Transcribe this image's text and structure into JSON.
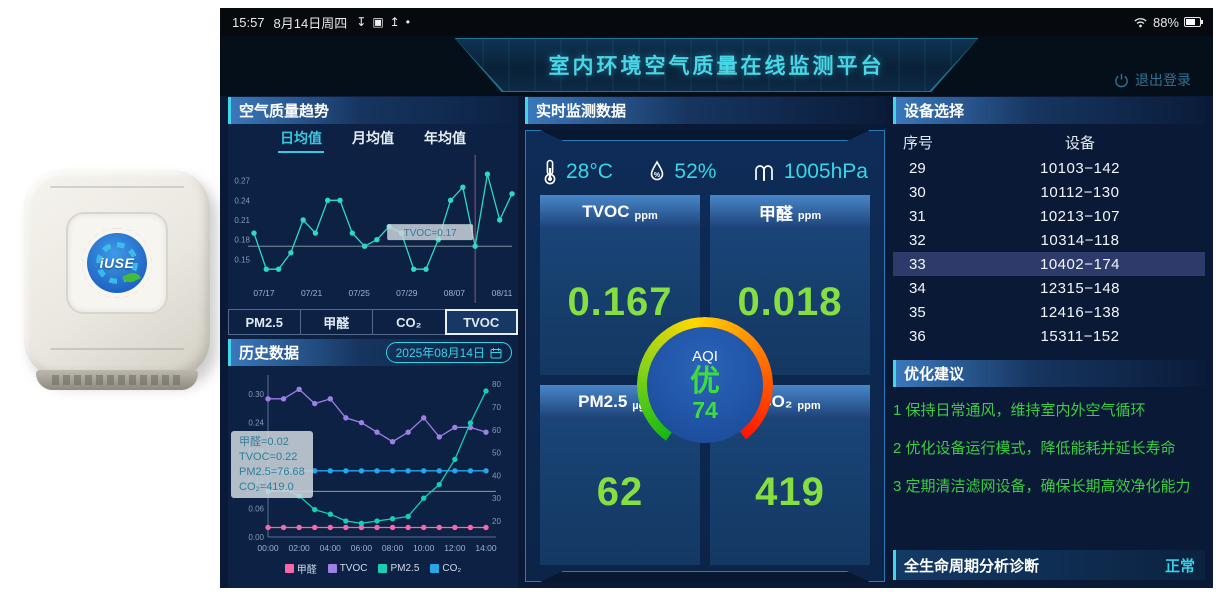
{
  "colors": {
    "accent_cyan": "#3fd8ea",
    "value_green": "#86df41",
    "aqi_green": "#3edc3e",
    "status_normal": "#38d2e4"
  },
  "status_bar": {
    "time": "15:57",
    "date": "8月14日周四",
    "icons": {
      "download": "↧",
      "image": "▣",
      "upload": "↥",
      "dot": "•"
    },
    "battery": "88%"
  },
  "header": {
    "title": "室内环境空气质量在线监测平台",
    "logout": "退出登录"
  },
  "trend_panel": {
    "title": "空气质量趋势",
    "tabs": [
      "日均值",
      "月均值",
      "年均值"
    ],
    "active_tab": "日均值",
    "metric_tabs": [
      "PM2.5",
      "甲醛",
      "CO₂",
      "TVOC"
    ],
    "active_metric": "TVOC",
    "tooltip": "TVOC=0.17"
  },
  "history_panel": {
    "title": "历史数据",
    "date": "2025年08月14日",
    "tooltip_lines": [
      "甲醛=0.02",
      "TVOC=0.22",
      "PM2.5=76.68",
      "CO₂=419.0"
    ]
  },
  "realtime_panel": {
    "title": "实时监测数据",
    "env": [
      {
        "icon": "thermometer-icon",
        "value": "28°C"
      },
      {
        "icon": "humidity-icon",
        "value": "52%"
      },
      {
        "icon": "pressure-icon",
        "value": "1005hPa"
      }
    ],
    "cards": [
      {
        "label": "TVOC",
        "unit": "ppm",
        "value": "0.167"
      },
      {
        "label": "甲醛",
        "unit": "ppm",
        "value": "0.018"
      },
      {
        "label": "PM2.5",
        "unit": "µg/m³",
        "value": "62"
      },
      {
        "label": "CO₂",
        "unit": "ppm",
        "value": "419"
      }
    ],
    "aqi": {
      "label": "AQI",
      "grade": "优",
      "value": "74"
    }
  },
  "device_panel": {
    "title": "设备选择",
    "columns": [
      "序号",
      "设备"
    ],
    "selected": "33",
    "rows": [
      [
        "29",
        "10103−142"
      ],
      [
        "30",
        "10112−130"
      ],
      [
        "31",
        "10213−107"
      ],
      [
        "32",
        "10314−118"
      ],
      [
        "33",
        "10402−174"
      ],
      [
        "34",
        "12315−148"
      ],
      [
        "35",
        "12416−138"
      ],
      [
        "36",
        "15311−152"
      ]
    ]
  },
  "suggestions_panel": {
    "title": "优化建议",
    "items": [
      "1 保持日常通风，维持室内外空气循环",
      "2 优化设备运行模式，降低能耗并延长寿命",
      "3 定期清洁滤网设备，确保长期高效净化能力"
    ]
  },
  "diagnosis_bar": {
    "title": "全生命周期分析诊断",
    "status": "正常"
  },
  "device_photo": {
    "logo_text": "iUSE"
  },
  "chart_data": [
    {
      "type": "line",
      "title": "空气质量趋势 (日均值, TVOC)",
      "x_labels": [
        "07/17",
        "07/21",
        "07/25",
        "07/29",
        "08/07",
        "08/11"
      ],
      "y_ticks": [
        0.15,
        0.18,
        0.21,
        0.24,
        0.27
      ],
      "y_range": [
        0.12,
        0.3
      ],
      "grid": false,
      "series": [
        {
          "name": "TVOC",
          "color": "#2ed9c3",
          "values": [
            0.19,
            0.135,
            0.135,
            0.16,
            0.21,
            0.19,
            0.24,
            0.24,
            0.19,
            0.17,
            0.18,
            0.2,
            0.19,
            0.135,
            0.135,
            0.18,
            0.24,
            0.26,
            0.17,
            0.28,
            0.21,
            0.25
          ]
        }
      ],
      "crosshair": {
        "y_value": 0.17,
        "x_index": 18
      },
      "tooltip": "TVOC=0.17"
    },
    {
      "type": "line",
      "title": "历史数据 2025年08月14日",
      "x": [
        "00:00",
        "01:00",
        "02:00",
        "03:00",
        "04:00",
        "05:00",
        "06:00",
        "07:00",
        "08:00",
        "09:00",
        "10:00",
        "11:00",
        "12:00",
        "13:00",
        "14:00"
      ],
      "left_ticks": [
        0.3,
        0.24,
        0.18,
        0.12,
        0.06,
        0.0
      ],
      "left_range": [
        0,
        0.34
      ],
      "right_ticks": [
        80,
        70,
        60,
        50,
        40,
        30,
        20
      ],
      "right_range": [
        13,
        84
      ],
      "crosshair_right": 33,
      "legend_position": "bottom",
      "series": [
        {
          "name": "甲醛",
          "color": "#f967a8",
          "axis": "left",
          "values": [
            0.02,
            0.02,
            0.02,
            0.02,
            0.02,
            0.02,
            0.02,
            0.02,
            0.02,
            0.02,
            0.02,
            0.02,
            0.02,
            0.02,
            0.02
          ]
        },
        {
          "name": "TVOC",
          "color": "#9d7fe6",
          "axis": "left",
          "values": [
            0.29,
            0.29,
            0.31,
            0.28,
            0.29,
            0.25,
            0.24,
            0.22,
            0.2,
            0.22,
            0.25,
            0.21,
            0.23,
            0.23,
            0.22
          ]
        },
        {
          "name": "PM2.5",
          "color": "#17cdb4",
          "axis": "right",
          "values": [
            33,
            34,
            31,
            25,
            23,
            20,
            19,
            20,
            21,
            22,
            30,
            36,
            47,
            63,
            77
          ]
        },
        {
          "name": "CO₂",
          "color": "#27a6e8",
          "axis": "right",
          "values": [
            42,
            42,
            42,
            42,
            42,
            42,
            42,
            42,
            42,
            42,
            42,
            42,
            42,
            42,
            42
          ]
        }
      ],
      "tooltip_lines": [
        "甲醛=0.02",
        "TVOC=0.22",
        "PM2.5=76.68",
        "CO₂=419.0"
      ]
    }
  ]
}
